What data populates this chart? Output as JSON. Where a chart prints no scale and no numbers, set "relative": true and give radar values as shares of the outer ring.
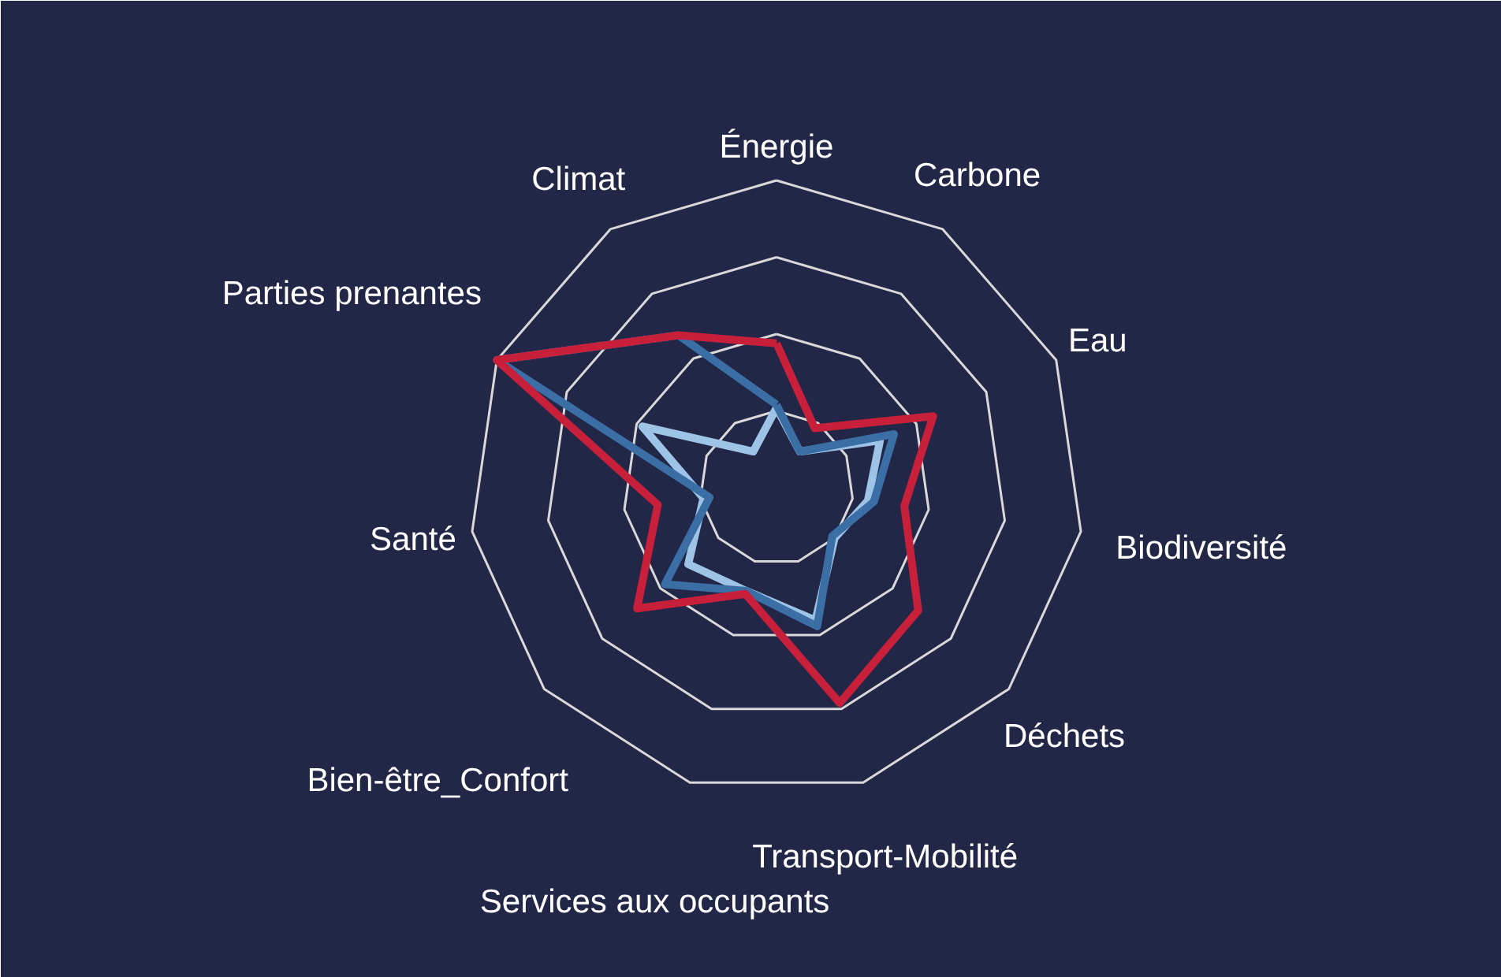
{
  "chart_data": {
    "type": "radar",
    "relative": true,
    "grid": true,
    "categories": [
      "Énergie",
      "Carbone",
      "Eau",
      "Biodiversité",
      "Déchets",
      "Transport-Mobilité",
      "Services aux occupants",
      "Bien-être_Confort",
      "Santé",
      "Parties prenantes",
      "Climat"
    ],
    "series": [
      {
        "color": "#9dc3e6",
        "values": [
          0.26,
          0.14,
          0.37,
          0.3,
          0.25,
          0.45,
          0.35,
          0.38,
          0.24,
          0.48,
          0.14
        ]
      },
      {
        "color": "#3a6ea5",
        "values": [
          0.27,
          0.14,
          0.42,
          0.32,
          0.24,
          0.47,
          0.35,
          0.48,
          0.22,
          1.0,
          0.59
        ]
      },
      {
        "color": "#c8203a",
        "values": [
          0.47,
          0.23,
          0.56,
          0.42,
          0.61,
          0.73,
          0.36,
          0.6,
          0.39,
          1.0,
          0.59
        ]
      }
    ]
  }
}
